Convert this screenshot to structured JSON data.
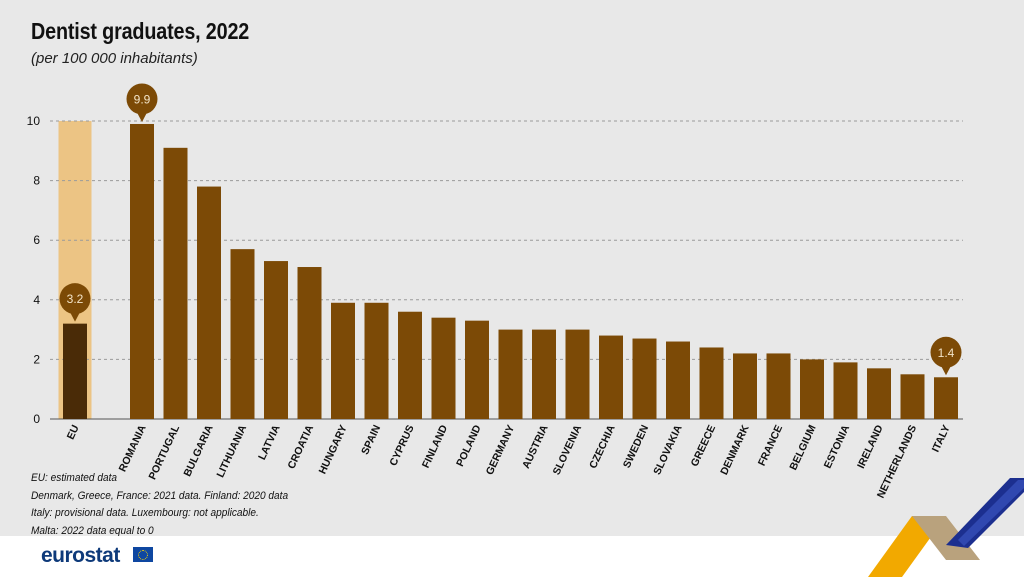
{
  "title": "Dentist graduates, 2022",
  "subtitle": "(per 100 000 inhabitants)",
  "notes": [
    "EU: estimated data",
    "Denmark, Greece, France: 2021 data. Finland: 2020 data",
    "Italy: provisional data. Luxembourg: not applicable.",
    "Malta: 2022 data equal to 0"
  ],
  "logo_text": "eurostat",
  "colors": {
    "bar": "#7c4a06",
    "eu_bar": "#4a2b07",
    "eu_highlight": "#ecc484",
    "callout": "#7c4a06",
    "callout_text": "#f3e4c8"
  },
  "chart_data": {
    "type": "bar",
    "title": "Dentist graduates, 2022",
    "subtitle": "(per 100 000 inhabitants)",
    "categories": [
      "EU",
      "ROMANIA",
      "PORTUGAL",
      "BULGARIA",
      "LITHUANIA",
      "LATVIA",
      "CROATIA",
      "HUNGARY",
      "SPAIN",
      "CYPRUS",
      "FINLAND",
      "POLAND",
      "GERMANY",
      "AUSTRIA",
      "SLOVENIA",
      "CZECHIA",
      "SWEDEN",
      "SLOVAKIA",
      "GREECE",
      "DENMARK",
      "FRANCE",
      "BELGIUM",
      "ESTONIA",
      "IRELAND",
      "NETHERLANDS",
      "ITALY"
    ],
    "values": [
      3.2,
      9.9,
      9.1,
      7.8,
      5.7,
      5.3,
      5.1,
      3.9,
      3.9,
      3.6,
      3.4,
      3.3,
      3.0,
      3.0,
      3.0,
      2.8,
      2.7,
      2.6,
      2.4,
      2.2,
      2.2,
      2.0,
      1.9,
      1.7,
      1.5,
      1.4
    ],
    "y_ticks": [
      0,
      2,
      4,
      6,
      8,
      10
    ],
    "ylim": [
      0,
      10
    ],
    "grid": true,
    "callouts": [
      {
        "category": "EU",
        "label": "3.2"
      },
      {
        "category": "ROMANIA",
        "label": "9.9"
      },
      {
        "category": "ITALY",
        "label": "1.4"
      }
    ]
  }
}
